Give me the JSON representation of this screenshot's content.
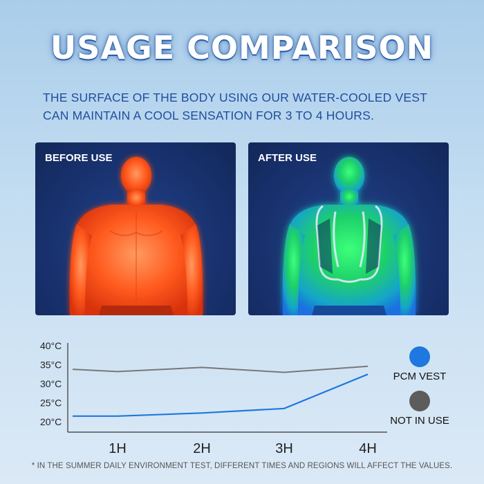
{
  "title": "USAGE COMPARISON",
  "subtitle_line1": "THE SURFACE OF THE BODY USING OUR WATER-COOLED VEST",
  "subtitle_line2": "CAN MAINTAIN A COOL SENSATION FOR 3 TO 4 HOURS.",
  "panels": {
    "before_label": "BEFORE USE",
    "after_label": "AFTER USE"
  },
  "legend": {
    "pcm_label": "PCM VEST",
    "pcm_color": "#1f77e0",
    "notinuse_label": "NOT IN USE",
    "notinuse_color": "#5c5c5c"
  },
  "footnote": "*  IN THE SUMMER DAILY ENVIRONMENT TEST, DIFFERENT TIMES AND REGIONS WILL AFFECT THE VALUES.",
  "chart_data": {
    "type": "line",
    "x_ticks": [
      "1H",
      "2H",
      "3H",
      "4H"
    ],
    "y_ticks": [
      "20°C",
      "25°C",
      "30°C",
      "35°C",
      "40°C"
    ],
    "ylim": [
      20,
      40
    ],
    "series": [
      {
        "name": "PCM VEST",
        "color": "#1f77e0",
        "x": [
          0.5,
          1,
          2,
          3,
          4
        ],
        "values": [
          21.5,
          21.5,
          22.3,
          23.5,
          32.5
        ]
      },
      {
        "name": "NOT IN USE",
        "color": "#777777",
        "x": [
          0.5,
          1,
          2,
          3,
          4
        ],
        "values": [
          33.8,
          33.2,
          34.3,
          33.0,
          34.6
        ]
      }
    ]
  }
}
